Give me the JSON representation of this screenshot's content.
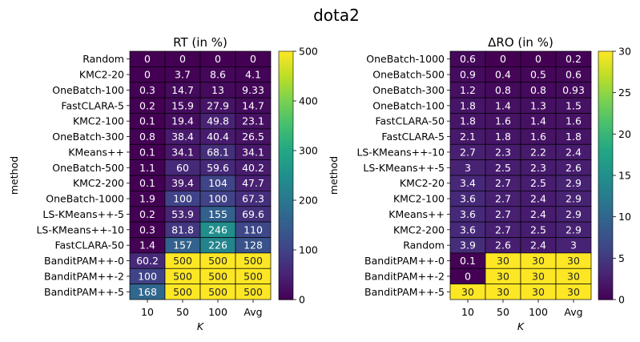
{
  "suptitle": "dota2",
  "chart_data": [
    {
      "type": "heatmap",
      "title": "RT (in %)",
      "xlabel": "K",
      "ylabel": "method",
      "columns": [
        "10",
        "50",
        "100",
        "Avg"
      ],
      "rows": [
        "Random",
        "KMC2-20",
        "OneBatch-100",
        "FastCLARA-5",
        "KMC2-100",
        "OneBatch-300",
        "KMeans++",
        "OneBatch-500",
        "KMC2-200",
        "OneBatch-1000",
        "LS-KMeans++-5",
        "LS-KMeans++-10",
        "FastCLARA-50",
        "BanditPAM++-0",
        "BanditPAM++-2",
        "BanditPAM++-5"
      ],
      "values": [
        [
          "0",
          "0",
          "0",
          "0"
        ],
        [
          "0",
          "3.7",
          "8.6",
          "4.1"
        ],
        [
          "0.3",
          "14.7",
          "13",
          "9.33"
        ],
        [
          "0.2",
          "15.9",
          "27.9",
          "14.7"
        ],
        [
          "0.1",
          "19.4",
          "49.8",
          "23.1"
        ],
        [
          "0.8",
          "38.4",
          "40.4",
          "26.5"
        ],
        [
          "0.1",
          "34.1",
          "68.1",
          "34.1"
        ],
        [
          "1.1",
          "60",
          "59.6",
          "40.2"
        ],
        [
          "0.1",
          "39.4",
          "104",
          "47.7"
        ],
        [
          "1.9",
          "100",
          "100",
          "67.3"
        ],
        [
          "0.2",
          "53.9",
          "155",
          "69.6"
        ],
        [
          "0.3",
          "81.8",
          "246",
          "110"
        ],
        [
          "1.4",
          "157",
          "226",
          "128"
        ],
        [
          "60.2",
          "500",
          "500",
          "500"
        ],
        [
          "100",
          "500",
          "500",
          "500"
        ],
        [
          "168",
          "500",
          "500",
          "500"
        ]
      ],
      "colorbar": {
        "colormap": "viridis",
        "range": [
          0,
          500
        ],
        "ticks": [
          "0",
          "100",
          "200",
          "300",
          "400",
          "500"
        ]
      }
    },
    {
      "type": "heatmap",
      "title": "ΔRO (in %)",
      "xlabel": "K",
      "ylabel": "method",
      "columns": [
        "10",
        "50",
        "100",
        "Avg"
      ],
      "rows": [
        "OneBatch-1000",
        "OneBatch-500",
        "OneBatch-300",
        "OneBatch-100",
        "FastCLARA-50",
        "FastCLARA-5",
        "LS-KMeans++-10",
        "LS-KMeans++-5",
        "KMC2-20",
        "KMC2-100",
        "KMeans++",
        "KMC2-200",
        "Random",
        "BanditPAM++-0",
        "BanditPAM++-2",
        "BanditPAM++-5"
      ],
      "values": [
        [
          "0.6",
          "0",
          "0",
          "0.2"
        ],
        [
          "0.9",
          "0.4",
          "0.5",
          "0.6"
        ],
        [
          "1.2",
          "0.8",
          "0.8",
          "0.93"
        ],
        [
          "1.8",
          "1.4",
          "1.3",
          "1.5"
        ],
        [
          "1.8",
          "1.6",
          "1.4",
          "1.6"
        ],
        [
          "2.1",
          "1.8",
          "1.6",
          "1.8"
        ],
        [
          "2.7",
          "2.3",
          "2.2",
          "2.4"
        ],
        [
          "3",
          "2.5",
          "2.3",
          "2.6"
        ],
        [
          "3.4",
          "2.7",
          "2.5",
          "2.9"
        ],
        [
          "3.6",
          "2.7",
          "2.4",
          "2.9"
        ],
        [
          "3.6",
          "2.7",
          "2.4",
          "2.9"
        ],
        [
          "3.6",
          "2.7",
          "2.5",
          "2.9"
        ],
        [
          "3.9",
          "2.6",
          "2.4",
          "3"
        ],
        [
          "0.1",
          "30",
          "30",
          "30"
        ],
        [
          "0",
          "30",
          "30",
          "30"
        ],
        [
          "30",
          "30",
          "30",
          "30"
        ]
      ],
      "colorbar": {
        "colormap": "viridis",
        "range": [
          0,
          30
        ],
        "ticks": [
          "0",
          "5",
          "10",
          "15",
          "20",
          "25",
          "30"
        ]
      }
    }
  ]
}
